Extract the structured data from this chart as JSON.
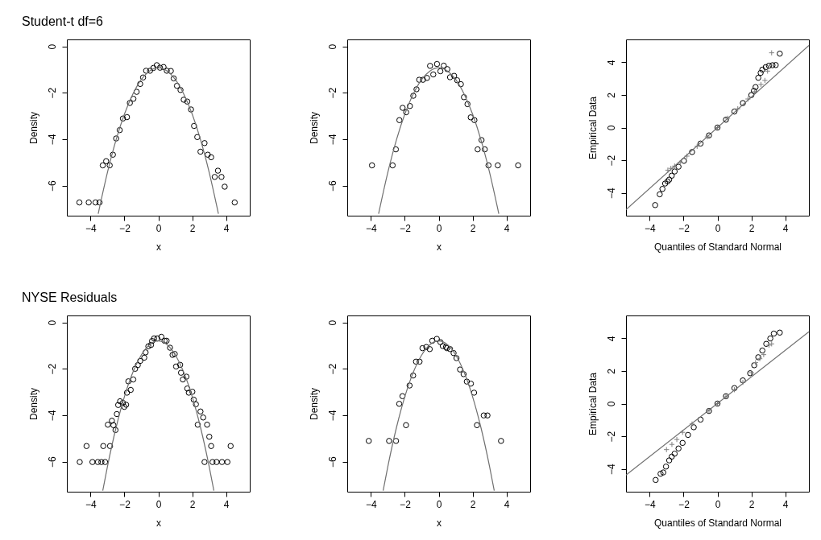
{
  "chart_data": [
    {
      "type": "scatter",
      "title": "Student-t df=6",
      "xlabel": "x",
      "ylabel": "Density",
      "xlim": [
        -5.4,
        5.4
      ],
      "ylim": [
        -7.3,
        0.3
      ],
      "xticks": [
        -4,
        -2,
        0,
        2,
        4
      ],
      "yticks": [
        -6,
        -4,
        -2,
        0
      ],
      "series": [
        {
          "type": "scatter",
          "marker": "circle",
          "color": "#000000",
          "x": [
            -4.66,
            -4.11,
            -3.71,
            -3.47,
            -3.28,
            -3.08,
            -2.87,
            -2.68,
            -2.49,
            -2.28,
            -2.09,
            -1.85,
            -1.68,
            -1.47,
            -1.28,
            -1.07,
            -0.9,
            -0.72,
            -0.49,
            -0.29,
            -0.09,
            0.1,
            0.31,
            0.5,
            0.74,
            0.91,
            1.1,
            1.31,
            1.5,
            1.71,
            1.93,
            2.11,
            2.3,
            2.49,
            2.73,
            2.92,
            3.12,
            3.33,
            3.52,
            3.73,
            3.92,
            4.51
          ],
          "values": [
            -6.73,
            -6.73,
            -6.73,
            -6.73,
            -5.13,
            -4.95,
            -5.13,
            -4.67,
            -3.97,
            -3.61,
            -3.11,
            -3.05,
            -2.44,
            -2.26,
            -1.96,
            -1.62,
            -1.34,
            -1.05,
            -1.05,
            -0.93,
            -0.81,
            -0.92,
            -0.89,
            -1.05,
            -1.06,
            -1.38,
            -1.7,
            -1.88,
            -2.3,
            -2.38,
            -2.72,
            -3.43,
            -3.91,
            -4.54,
            -4.17,
            -4.67,
            -4.78,
            -5.63,
            -5.36,
            -5.63,
            -6.05,
            -6.73
          ]
        },
        {
          "type": "line",
          "color": "#707070",
          "x": [
            -3.55,
            -3,
            -2.5,
            -2,
            -1.5,
            -1,
            -0.5,
            0,
            0.5,
            1,
            1.5,
            2,
            2.5,
            3,
            3.55
          ],
          "values": [
            -7.22,
            -5.42,
            -4.04,
            -2.92,
            -2.05,
            -1.42,
            -1.05,
            -0.92,
            -1.05,
            -1.42,
            -2.05,
            -2.92,
            -4.04,
            -5.42,
            -7.22
          ]
        }
      ]
    },
    {
      "type": "scatter",
      "xlabel": "x",
      "ylabel": "Density",
      "xlim": [
        -5.4,
        5.4
      ],
      "ylim": [
        -7.3,
        0.3
      ],
      "xticks": [
        -4,
        -2,
        0,
        2,
        4
      ],
      "yticks": [
        -6,
        -4,
        -2,
        0
      ],
      "series": [
        {
          "type": "scatter",
          "marker": "circle",
          "color": "#000000",
          "x": [
            -3.94,
            -2.72,
            -2.53,
            -2.32,
            -2.13,
            -1.92,
            -1.7,
            -1.5,
            -1.31,
            -1.15,
            -0.93,
            -0.69,
            -0.51,
            -0.32,
            -0.1,
            0.1,
            0.3,
            0.51,
            0.67,
            0.91,
            1.09,
            1.31,
            1.49,
            1.7,
            1.89,
            2.11,
            2.53,
            2.3,
            2.72,
            2.94,
            3.49,
            4.69
          ],
          "values": [
            -5.13,
            -5.13,
            -4.44,
            -3.18,
            -2.65,
            -2.84,
            -2.57,
            -2.13,
            -1.85,
            -1.44,
            -1.44,
            -1.36,
            -0.84,
            -1.21,
            -0.76,
            -1.07,
            -0.83,
            -0.98,
            -1.33,
            -1.27,
            -1.46,
            -1.63,
            -2.19,
            -2.49,
            -3.06,
            -3.18,
            -4.04,
            -4.44,
            -4.44,
            -5.13,
            -5.13,
            -5.13
          ]
        },
        {
          "type": "line",
          "color": "#707070",
          "x": [
            -3.55,
            -3,
            -2.5,
            -2,
            -1.5,
            -1,
            -0.5,
            0,
            0.5,
            1,
            1.5,
            2,
            2.5,
            3,
            3.55
          ],
          "values": [
            -7.22,
            -5.42,
            -4.04,
            -2.92,
            -2.05,
            -1.42,
            -1.05,
            -0.92,
            -1.05,
            -1.42,
            -2.05,
            -2.92,
            -4.04,
            -5.42,
            -7.22
          ]
        }
      ]
    },
    {
      "type": "scatter",
      "xlabel": "Quantiles of Standard Normal",
      "ylabel": "Empirical Data",
      "xlim": [
        -5.4,
        5.4
      ],
      "ylim": [
        -5.4,
        5.4
      ],
      "xticks": [
        -4,
        -2,
        0,
        2,
        4
      ],
      "yticks": [
        -4,
        -2,
        0,
        2,
        4
      ],
      "series": [
        {
          "type": "scatter",
          "marker": "circle",
          "color": "#000000",
          "x": [
            -3.68,
            -3.41,
            -3.25,
            -3.09,
            -2.95,
            -2.85,
            -2.7,
            -2.53,
            -2.3,
            -1.98,
            -1.5,
            -1,
            -0.5,
            0,
            0.5,
            1,
            1.5,
            2,
            2.15,
            2.25,
            2.41,
            2.55,
            2.65,
            2.85,
            3.04,
            3.25,
            3.44,
            3.68
          ],
          "values": [
            -4.75,
            -4.09,
            -3.76,
            -3.43,
            -3.3,
            -3.19,
            -2.95,
            -2.69,
            -2.4,
            -2.04,
            -1.5,
            -0.98,
            -0.48,
            0,
            0.48,
            0.98,
            1.5,
            1.99,
            2.25,
            2.48,
            3.05,
            3.35,
            3.55,
            3.7,
            3.79,
            3.82,
            3.83,
            4.53
          ]
        },
        {
          "type": "scatter",
          "marker": "cross",
          "color": "#808080",
          "x": [
            -2.93,
            -2.75,
            -2.53,
            -2.2,
            -1.8,
            -1.2,
            -0.6,
            0,
            0.6,
            1.2,
            1.8,
            2.2,
            2.57,
            2.8,
            2.96,
            3.2
          ],
          "values": [
            -2.61,
            -2.5,
            -2.36,
            -2.15,
            -1.75,
            -1.15,
            -0.57,
            0,
            0.57,
            1.15,
            1.75,
            2.2,
            2.64,
            2.89,
            3.46,
            4.58
          ]
        },
        {
          "type": "line",
          "color": "#707070",
          "x": [
            -5.4,
            5.4
          ],
          "values": [
            -5.03,
            5.03
          ]
        }
      ]
    },
    {
      "type": "scatter",
      "title": "NYSE Residuals",
      "xlabel": "x",
      "ylabel": "Density",
      "xlim": [
        -5.4,
        5.4
      ],
      "ylim": [
        -7.3,
        0.3
      ],
      "xticks": [
        -4,
        -2,
        0,
        2,
        4
      ],
      "yticks": [
        -6,
        -4,
        -2,
        0
      ],
      "series": [
        {
          "type": "scatter",
          "marker": "circle",
          "color": "#000000",
          "x": [
            -4.64,
            -4.24,
            -3.89,
            -3.57,
            -3.36,
            -3.14,
            -3.25,
            -2.85,
            -2.98,
            -2.74,
            -2.65,
            -2.53,
            -2.45,
            -2.37,
            -2.26,
            -2.09,
            -2.01,
            -1.9,
            -1.85,
            -1.63,
            -1.77,
            -1.48,
            -1.37,
            -1.21,
            -1.07,
            -0.83,
            -0.75,
            -0.59,
            -0.43,
            -0.37,
            -0.25,
            -0.06,
            0.18,
            0.37,
            0.49,
            0.69,
            0.84,
            0.97,
            1.05,
            1.29,
            1.34,
            1.45,
            1.66,
            1.71,
            1.8,
            2.01,
            2.09,
            2.22,
            2.33,
            2.49,
            2.65,
            2.88,
            3.01,
            3.12,
            2.73,
            3.2,
            3.44,
            3.76,
            4.08,
            4.27
          ],
          "values": [
            -6.02,
            -5.33,
            -6.02,
            -6.02,
            -6.02,
            -6.02,
            -5.33,
            -5.33,
            -4.41,
            -4.24,
            -4.43,
            -4.64,
            -3.95,
            -3.56,
            -3.4,
            -3.47,
            -3.64,
            -3.55,
            -3.03,
            -2.91,
            -2.54,
            -2.46,
            -2,
            -1.84,
            -1.66,
            -1.52,
            -1.29,
            -1.03,
            -0.97,
            -0.8,
            -0.69,
            -0.69,
            -0.62,
            -0.79,
            -0.79,
            -1.09,
            -1.4,
            -1.36,
            -1.9,
            -1.83,
            -2.17,
            -2.46,
            -2.34,
            -2.85,
            -3.03,
            -2.99,
            -3.33,
            -3.53,
            -4.41,
            -3.84,
            -4.1,
            -4.41,
            -4.93,
            -5.33,
            -6.02,
            -6.02,
            -6.02,
            -6.02,
            -6.02,
            -5.33
          ]
        },
        {
          "type": "line",
          "color": "#707070",
          "x": [
            -3.28,
            -3,
            -2.5,
            -2,
            -1.5,
            -1,
            -0.5,
            0,
            0.5,
            1,
            1.5,
            2,
            2.5,
            3,
            3.28
          ],
          "values": [
            -7.25,
            -6.2,
            -4.55,
            -3.2,
            -2.15,
            -1.4,
            -0.95,
            -0.8,
            -0.95,
            -1.4,
            -2.15,
            -3.2,
            -4.55,
            -6.2,
            -7.25
          ]
        }
      ]
    },
    {
      "type": "scatter",
      "xlabel": "x",
      "ylabel": "Density",
      "xlim": [
        -5.4,
        5.4
      ],
      "ylim": [
        -7.3,
        0.3
      ],
      "xticks": [
        -4,
        -2,
        0,
        2,
        4
      ],
      "yticks": [
        -6,
        -4,
        -2,
        0
      ],
      "series": [
        {
          "type": "scatter",
          "marker": "circle",
          "color": "#000000",
          "x": [
            -4.13,
            -2.93,
            -2.52,
            -2.33,
            -2.14,
            -1.93,
            -1.72,
            -1.51,
            -1.34,
            -1.13,
            -0.96,
            -0.73,
            -0.53,
            -0.38,
            -0.11,
            0.1,
            0.24,
            0.43,
            0.49,
            0.67,
            0.88,
            1.05,
            1.26,
            1.47,
            1.66,
            1.9,
            2.09,
            2.26,
            2.66,
            2.88,
            3.68
          ],
          "values": [
            -5.11,
            -5.11,
            -5.11,
            -3.51,
            -3.18,
            -4.43,
            -2.72,
            -2.29,
            -1.69,
            -1.69,
            -1.11,
            -1.06,
            -1.15,
            -0.79,
            -0.71,
            -0.85,
            -1.02,
            -1.06,
            -1.11,
            -1.15,
            -1.32,
            -1.54,
            -2.03,
            -2.23,
            -2.55,
            -2.64,
            -3.03,
            -4.43,
            -4.01,
            -4.01,
            -5.11
          ]
        },
        {
          "type": "line",
          "color": "#707070",
          "x": [
            -3.28,
            -3,
            -2.5,
            -2,
            -1.5,
            -1,
            -0.5,
            0,
            0.5,
            1,
            1.5,
            2,
            2.5,
            3,
            3.28
          ],
          "values": [
            -7.25,
            -6.2,
            -4.55,
            -3.2,
            -2.15,
            -1.4,
            -0.95,
            -0.8,
            -0.95,
            -1.4,
            -2.15,
            -3.2,
            -4.55,
            -6.2,
            -7.25
          ]
        }
      ]
    },
    {
      "type": "scatter",
      "xlabel": "Quantiles of Standard Normal",
      "ylabel": "Empirical Data",
      "xlim": [
        -5.4,
        5.4
      ],
      "ylim": [
        -5.4,
        5.4
      ],
      "xticks": [
        -4,
        -2,
        0,
        2,
        4
      ],
      "yticks": [
        -4,
        -2,
        0,
        2,
        4
      ],
      "series": [
        {
          "type": "scatter",
          "marker": "circle",
          "color": "#000000",
          "x": [
            -3.65,
            -3.36,
            -3.2,
            -3.04,
            -2.85,
            -2.7,
            -2.53,
            -2.3,
            -2.06,
            -1.74,
            -1.4,
            -1,
            -0.5,
            0,
            0.5,
            1,
            1.5,
            1.93,
            2.17,
            2.41,
            2.65,
            2.88,
            3.12,
            3.33,
            3.68
          ],
          "values": [
            -4.68,
            -4.3,
            -4.22,
            -3.86,
            -3.48,
            -3.25,
            -3.07,
            -2.75,
            -2.41,
            -1.92,
            -1.45,
            -0.98,
            -0.45,
            0,
            0.45,
            0.95,
            1.42,
            1.86,
            2.35,
            2.84,
            3.25,
            3.66,
            3.99,
            4.29,
            4.35
          ]
        },
        {
          "type": "scatter",
          "marker": "cross",
          "color": "#808080",
          "x": [
            -3.01,
            -2.69,
            -2.4,
            -2.06,
            -1.5,
            -1,
            -0.5,
            0,
            0.5,
            1,
            1.5,
            2,
            2.25,
            2.5,
            2.73,
            3.04,
            3.2
          ],
          "values": [
            -2.82,
            -2.5,
            -2.2,
            -1.76,
            -1.25,
            null,
            -0.42,
            0,
            0.42,
            0.85,
            1.3,
            1.9,
            2.51,
            2.75,
            3,
            3.58,
            3.66
          ]
        },
        {
          "type": "line",
          "color": "#707070",
          "x": [
            -5.4,
            5.4
          ],
          "values": [
            -4.38,
            4.4
          ]
        }
      ]
    }
  ]
}
